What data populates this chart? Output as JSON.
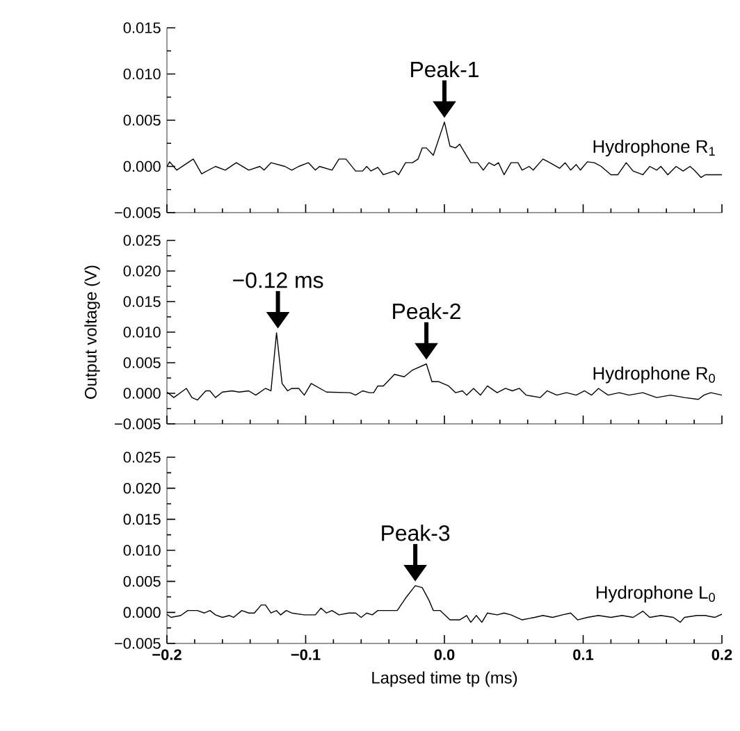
{
  "chart_data": [
    {
      "type": "line",
      "xlim": [
        -0.2,
        0.2
      ],
      "ylim": [
        -0.005,
        0.015
      ],
      "tick_labels": "y",
      "xticks": [
        -0.2,
        -0.1,
        0,
        0.1,
        0.2
      ],
      "yticks": [
        {
          "value": -0.005,
          "label": "−0.005"
        },
        {
          "value": 0,
          "label": "0.000"
        },
        0.005,
        {
          "value": 0.01,
          "label": "0.010"
        },
        0.015
      ],
      "annotations": [
        {
          "text": "Peak-1",
          "x": 0,
          "y": 0.0048
        }
      ],
      "series": [
        {
          "name": "Hydrophone R$_{1}$",
          "color": "#000000",
          "x": [
            -0.2,
            -0.198,
            -0.193,
            -0.181,
            -0.175,
            -0.165,
            -0.158,
            -0.15,
            -0.141,
            -0.133,
            -0.13,
            -0.125,
            -0.115,
            -0.11,
            -0.105,
            -0.098,
            -0.093,
            -0.09,
            -0.081,
            -0.076,
            -0.071,
            -0.064,
            -0.059,
            -0.056,
            -0.053,
            -0.048,
            -0.044,
            -0.036,
            -0.033,
            -0.028,
            -0.023,
            -0.019,
            -0.016,
            -0.013,
            -0.008,
            0.0,
            0.004,
            0.008,
            0.011,
            0.019,
            0.024,
            0.028,
            0.032,
            0.036,
            0.039,
            0.043,
            0.048,
            0.053,
            0.056,
            0.061,
            0.064,
            0.071,
            0.076,
            0.083,
            0.087,
            0.091,
            0.095,
            0.098,
            0.103,
            0.108,
            0.113,
            0.12,
            0.125,
            0.131,
            0.136,
            0.143,
            0.148,
            0.153,
            0.156,
            0.161,
            0.167,
            0.172,
            0.177,
            0.18,
            0.185,
            0.188,
            0.2
          ],
          "values": [
            0,
            0.0005,
            -0.0004,
            0.0008,
            -0.0008,
            0,
            -0.0004,
            0.0004,
            -0.0004,
            0,
            -0.0004,
            0.0004,
            0,
            -0.0004,
            0,
            0.0004,
            -0.0004,
            0,
            -0.0004,
            0.0008,
            0.0008,
            -0.0005,
            -0.0005,
            0,
            -0.0005,
            -0.0001,
            -0.0009,
            -0.0005,
            -0.0009,
            0.0004,
            0.0004,
            0.0008,
            0.002,
            0.002,
            0.0012,
            0.0048,
            0.0022,
            0.002,
            0.0024,
            0.0004,
            0.0004,
            -0.0004,
            0.0004,
            0.0001,
            0.0004,
            -0.0009,
            0.0004,
            0.0004,
            -0.0004,
            0,
            -0.0004,
            0.0008,
            0.0004,
            -0.0002,
            0.0004,
            -0.0004,
            0.0002,
            -0.0004,
            0.0005,
            0.0004,
            0,
            -0.0009,
            -0.0009,
            0.0004,
            -0.0005,
            -0.0009,
            0,
            -0.0004,
            0,
            -0.0009,
            0,
            -0.0005,
            0,
            -0.0004,
            -0.0012,
            -0.0009,
            -0.0009
          ]
        }
      ]
    },
    {
      "type": "line",
      "xlim": [
        -0.2,
        0.2
      ],
      "ylim": [
        -0.005,
        0.025
      ],
      "tick_labels": "y",
      "ylabel": "Output voltage (V)",
      "xticks": [
        -0.2,
        -0.1,
        0,
        0.1,
        0.2
      ],
      "yticks": [
        {
          "value": -0.005,
          "label": "−0.005"
        },
        {
          "value": 0,
          "label": "0.000"
        },
        0.005,
        {
          "value": 0.01,
          "label": "0.010"
        },
        0.015,
        {
          "value": 0.02,
          "label": "0.020"
        },
        0.025
      ],
      "annotations": [
        {
          "text": "−0.12 ms",
          "x": -0.12,
          "y": 0.0099
        },
        {
          "text": "Peak-2",
          "x": -0.013,
          "y": 0.0048
        }
      ],
      "series": [
        {
          "name": "Hydrophone R$_{0}$",
          "color": "#000000",
          "x": [
            -0.2,
            -0.195,
            -0.186,
            -0.182,
            -0.178,
            -0.172,
            -0.169,
            -0.165,
            -0.16,
            -0.153,
            -0.148,
            -0.141,
            -0.136,
            -0.129,
            -0.125,
            -0.121,
            -0.117,
            -0.113,
            -0.11,
            -0.105,
            -0.101,
            -0.096,
            -0.085,
            -0.068,
            -0.064,
            -0.059,
            -0.054,
            -0.051,
            -0.048,
            -0.044,
            -0.036,
            -0.029,
            -0.023,
            -0.013,
            -0.009,
            -0.004,
            0.003,
            0.008,
            0.013,
            0.016,
            0.021,
            0.026,
            0.031,
            0.038,
            0.044,
            0.049,
            0.054,
            0.059,
            0.069,
            0.074,
            0.081,
            0.088,
            0.095,
            0.101,
            0.106,
            0.111,
            0.118,
            0.126,
            0.133,
            0.143,
            0.153,
            0.163,
            0.173,
            0.183,
            0.187,
            0.192,
            0.2
          ],
          "values": [
            0.0002,
            -0.0007,
            0.0008,
            -0.0007,
            -0.0011,
            0.0004,
            0.0004,
            -0.0007,
            0.0002,
            0.0004,
            0.0002,
            0.0004,
            -0.0003,
            0.0008,
            0.0004,
            0.0099,
            0.0016,
            0.0004,
            0.0008,
            0.0008,
            -0.0003,
            0.0016,
            0.0002,
            0.0001,
            -0.0003,
            0.0004,
            0.0001,
            0.0001,
            0.0012,
            0.0012,
            0.0031,
            0.0027,
            0.0038,
            0.0048,
            0.0019,
            0.0019,
            0.0012,
            0.0001,
            0.0004,
            -0.0003,
            0.0008,
            -0.0003,
            0.0012,
            0.0001,
            0.0008,
            0.0004,
            0.0008,
            -0.0003,
            -0.0007,
            0.0004,
            -0.0003,
            0.0001,
            -0.0003,
            0.0004,
            -0.0003,
            0.0008,
            -0.0003,
            0.0001,
            -0.0003,
            0.0001,
            -0.0007,
            -0.0003,
            -0.0007,
            -0.001,
            -0.0003,
            0.0001,
            -0.0003
          ]
        }
      ]
    },
    {
      "type": "line",
      "xlim": [
        -0.2,
        0.2
      ],
      "ylim": [
        -0.005,
        0.025
      ],
      "xlabel": "Lapsed time tp (ms)",
      "xticks": [
        {
          "value": -0.2,
          "label": "−0.2"
        },
        {
          "value": -0.1,
          "label": "−0.1"
        },
        {
          "value": 0,
          "label": "0.0"
        },
        {
          "value": 0.1,
          "label": "0.1"
        },
        {
          "value": 0.2,
          "label": "0.2"
        }
      ],
      "yticks": [
        {
          "value": -0.005,
          "label": "−0.005"
        },
        {
          "value": 0,
          "label": "0.000"
        },
        0.005,
        {
          "value": 0.01,
          "label": "0.010"
        },
        0.015,
        {
          "value": 0.02,
          "label": "0.020"
        },
        0.025
      ],
      "annotations": [
        {
          "text": "Peak-3",
          "x": -0.021,
          "y": 0.0043
        }
      ],
      "series": [
        {
          "name": "Hydrophone L$_{0}$",
          "color": "#000000",
          "x": [
            -0.2,
            -0.197,
            -0.19,
            -0.185,
            -0.178,
            -0.173,
            -0.169,
            -0.165,
            -0.16,
            -0.155,
            -0.152,
            -0.146,
            -0.141,
            -0.137,
            -0.132,
            -0.129,
            -0.125,
            -0.121,
            -0.118,
            -0.114,
            -0.11,
            -0.101,
            -0.093,
            -0.089,
            -0.085,
            -0.081,
            -0.076,
            -0.069,
            -0.064,
            -0.06,
            -0.056,
            -0.052,
            -0.048,
            -0.043,
            -0.034,
            -0.028,
            -0.021,
            -0.016,
            -0.011,
            -0.008,
            -0.003,
            0.004,
            0.011,
            0.016,
            0.019,
            0.023,
            0.027,
            0.031,
            0.038,
            0.043,
            0.048,
            0.056,
            0.065,
            0.071,
            0.078,
            0.085,
            0.091,
            0.096,
            0.103,
            0.111,
            0.12,
            0.128,
            0.136,
            0.143,
            0.148,
            0.156,
            0.165,
            0.17,
            0.173,
            0.182,
            0.188,
            0.195,
            0.2
          ],
          "values": [
            -0.0003,
            -0.0008,
            -0.0005,
            0.0003,
            0.0003,
            -0.0001,
            0.0003,
            -0.0004,
            -0.0008,
            -0.0005,
            -0.0008,
            0.0003,
            -0.0001,
            -0.0001,
            0.0012,
            0.0012,
            -0.0001,
            0.0003,
            -0.0004,
            0.0003,
            -0.0001,
            -0.0004,
            -0.0004,
            0.0007,
            -0.0001,
            0.0003,
            -0.0004,
            -0.0001,
            -0.0001,
            -0.0008,
            -0.0001,
            -0.0004,
            0.0003,
            0.0003,
            0.0003,
            0.0023,
            0.0043,
            0.004,
            0.0019,
            0.0003,
            0.0003,
            -0.0012,
            -0.0012,
            -0.0005,
            -0.0016,
            -0.0005,
            -0.0016,
            -0.0001,
            -0.0004,
            -0.0001,
            -0.0004,
            -0.0012,
            -0.0008,
            -0.0005,
            -0.0008,
            -0.0004,
            -0.0001,
            -0.0012,
            -0.0008,
            -0.0005,
            -0.0008,
            -0.0005,
            -0.0008,
            0.0002,
            -0.0008,
            -0.0005,
            -0.0008,
            -0.0016,
            -0.0008,
            -0.0005,
            -0.0005,
            -0.0008,
            -0.0003
          ]
        }
      ]
    }
  ]
}
